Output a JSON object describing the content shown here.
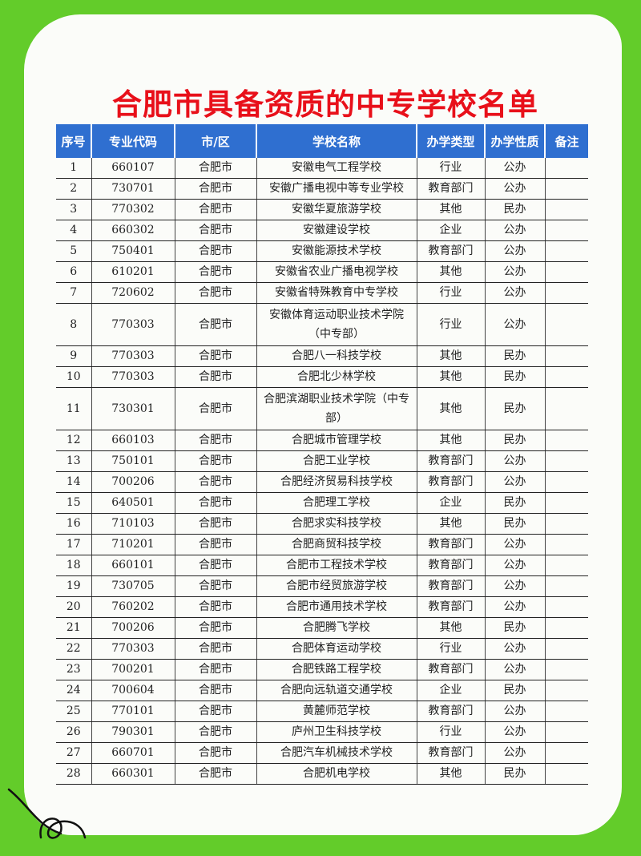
{
  "title": "合肥市具备资质的中专学校名单",
  "colors": {
    "background": "#63cc2a",
    "title": "#e8101a",
    "header": "#2f6fd0"
  },
  "table": {
    "headers": [
      "序号",
      "专业代码",
      "市/区",
      "学校名称",
      "办学类型",
      "办学性质",
      "备注"
    ],
    "rows": [
      [
        "1",
        "660107",
        "合肥市",
        "安徽电气工程学校",
        "行业",
        "公办",
        ""
      ],
      [
        "2",
        "730701",
        "合肥市",
        "安徽广播电视中等专业学校",
        "教育部门",
        "公办",
        ""
      ],
      [
        "3",
        "770302",
        "合肥市",
        "安徽华夏旅游学校",
        "其他",
        "民办",
        ""
      ],
      [
        "4",
        "660302",
        "合肥市",
        "安徽建设学校",
        "企业",
        "公办",
        ""
      ],
      [
        "5",
        "750401",
        "合肥市",
        "安徽能源技术学校",
        "教育部门",
        "公办",
        ""
      ],
      [
        "6",
        "610201",
        "合肥市",
        "安徽省农业广播电视学校",
        "其他",
        "公办",
        ""
      ],
      [
        "7",
        "720602",
        "合肥市",
        "安徽省特殊教育中专学校",
        "行业",
        "公办",
        ""
      ],
      [
        "8",
        "770303",
        "合肥市",
        "安徽体育运动职业技术学院（中专部）",
        "行业",
        "公办",
        ""
      ],
      [
        "9",
        "770303",
        "合肥市",
        "合肥八一科技学校",
        "其他",
        "民办",
        ""
      ],
      [
        "10",
        "770303",
        "合肥市",
        "合肥北少林学校",
        "其他",
        "民办",
        ""
      ],
      [
        "11",
        "730301",
        "合肥市",
        "合肥滨湖职业技术学院（中专部）",
        "其他",
        "民办",
        ""
      ],
      [
        "12",
        "660103",
        "合肥市",
        "合肥城市管理学校",
        "其他",
        "民办",
        ""
      ],
      [
        "13",
        "750101",
        "合肥市",
        "合肥工业学校",
        "教育部门",
        "公办",
        ""
      ],
      [
        "14",
        "700206",
        "合肥市",
        "合肥经济贸易科技学校",
        "教育部门",
        "公办",
        ""
      ],
      [
        "15",
        "640501",
        "合肥市",
        "合肥理工学校",
        "企业",
        "民办",
        ""
      ],
      [
        "16",
        "710103",
        "合肥市",
        "合肥求实科技学校",
        "其他",
        "民办",
        ""
      ],
      [
        "17",
        "710201",
        "合肥市",
        "合肥商贸科技学校",
        "教育部门",
        "公办",
        ""
      ],
      [
        "18",
        "660101",
        "合肥市",
        "合肥市工程技术学校",
        "教育部门",
        "公办",
        ""
      ],
      [
        "19",
        "730705",
        "合肥市",
        "合肥市经贸旅游学校",
        "教育部门",
        "公办",
        ""
      ],
      [
        "20",
        "760202",
        "合肥市",
        "合肥市通用技术学校",
        "教育部门",
        "公办",
        ""
      ],
      [
        "21",
        "700206",
        "合肥市",
        "合肥腾飞学校",
        "其他",
        "民办",
        ""
      ],
      [
        "22",
        "770303",
        "合肥市",
        "合肥体育运动学校",
        "行业",
        "公办",
        ""
      ],
      [
        "23",
        "700201",
        "合肥市",
        "合肥铁路工程学校",
        "教育部门",
        "公办",
        ""
      ],
      [
        "24",
        "700604",
        "合肥市",
        "合肥向远轨道交通学校",
        "企业",
        "民办",
        ""
      ],
      [
        "25",
        "770101",
        "合肥市",
        "黄麓师范学校",
        "教育部门",
        "公办",
        ""
      ],
      [
        "26",
        "790301",
        "合肥市",
        "庐州卫生科技学校",
        "行业",
        "公办",
        ""
      ],
      [
        "27",
        "660701",
        "合肥市",
        "合肥汽车机械技术学校",
        "教育部门",
        "公办",
        ""
      ],
      [
        "28",
        "660301",
        "合肥市",
        "合肥机电学校",
        "其他",
        "民办",
        ""
      ]
    ]
  }
}
